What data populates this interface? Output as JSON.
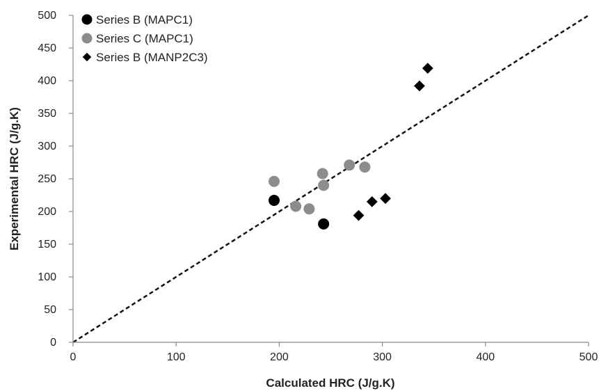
{
  "chart_data": {
    "type": "scatter",
    "title": "",
    "xlabel": "Calculated HRC (J/g.K)",
    "ylabel": "Experimental HRC (J/g.K)",
    "xlim": [
      0,
      500
    ],
    "ylim": [
      0,
      500
    ],
    "xticks": [
      0,
      100,
      200,
      300,
      400,
      500
    ],
    "yticks": [
      0,
      50,
      100,
      150,
      200,
      250,
      300,
      350,
      400,
      450,
      500
    ],
    "grid": false,
    "legend_position": "top-left",
    "reference_line": {
      "style": "dashed",
      "from": [
        0,
        0
      ],
      "to": [
        500,
        500
      ],
      "color": "#111111"
    },
    "series": [
      {
        "name": "Series B (MAPC1)",
        "marker": "circle",
        "color": "#000000",
        "points": [
          [
            195,
            217
          ],
          [
            243,
            181
          ]
        ]
      },
      {
        "name": "Series C (MAPC1)",
        "marker": "circle",
        "color": "#8c8c8c",
        "points": [
          [
            195,
            246
          ],
          [
            216,
            208
          ],
          [
            229,
            204
          ],
          [
            242,
            258
          ],
          [
            243,
            240
          ],
          [
            268,
            271
          ],
          [
            283,
            268
          ]
        ]
      },
      {
        "name": "Series B (MANP2C3)",
        "marker": "diamond",
        "color": "#000000",
        "points": [
          [
            277,
            194
          ],
          [
            290,
            215
          ],
          [
            303,
            220
          ],
          [
            336,
            392
          ],
          [
            344,
            419
          ]
        ]
      }
    ]
  }
}
